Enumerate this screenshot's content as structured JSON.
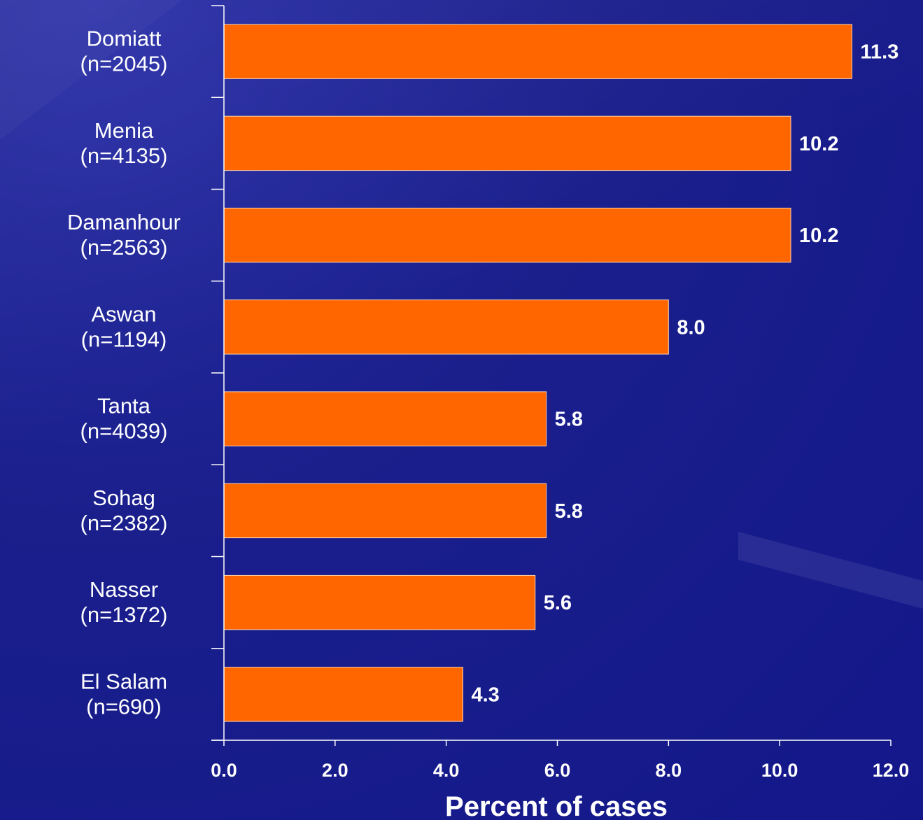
{
  "chart_data": {
    "type": "bar",
    "orientation": "horizontal",
    "categories": [
      [
        "Domiatt",
        "(n=2045)"
      ],
      [
        "Menia",
        "(n=4135)"
      ],
      [
        "Damanhour",
        "(n=2563)"
      ],
      [
        "Aswan",
        "(n=1194)"
      ],
      [
        "Tanta",
        "(n=4039)"
      ],
      [
        "Sohag",
        "(n=2382)"
      ],
      [
        "Nasser",
        "(n=1372)"
      ],
      [
        "El Salam",
        "(n=690)"
      ]
    ],
    "values": [
      11.3,
      10.2,
      10.2,
      8.0,
      5.8,
      5.8,
      5.6,
      4.3
    ],
    "value_labels": [
      "11.3",
      "10.2",
      "10.2",
      "8.0",
      "5.8",
      "5.8",
      "5.6",
      "4.3"
    ],
    "xlabel": "Percent of cases",
    "xlim": [
      0,
      12
    ],
    "xticks": [
      "0.0",
      "2.0",
      "4.0",
      "6.0",
      "8.0",
      "10.0",
      "12.0"
    ],
    "bar_color": "#ff6600",
    "text_color": "#ffffff",
    "background_color": "#1a1f8c",
    "grid": false,
    "legend": "none"
  }
}
